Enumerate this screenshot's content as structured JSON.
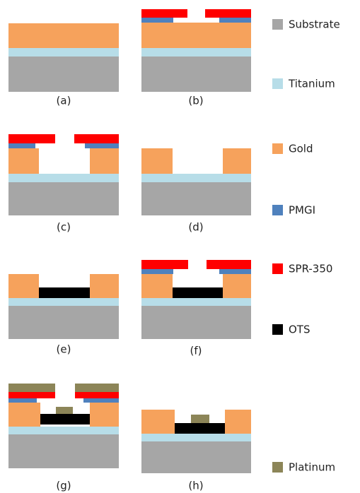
{
  "panels": [
    {
      "label": "(a)"
    },
    {
      "label": "(b)"
    },
    {
      "label": "(c)"
    },
    {
      "label": "(d)"
    },
    {
      "label": "(e)"
    },
    {
      "label": "(f)"
    },
    {
      "label": "(g)"
    },
    {
      "label": "(h)"
    }
  ],
  "legend": [
    {
      "label": "Substrate"
    },
    {
      "label": "Titanium"
    },
    {
      "label": "Gold"
    },
    {
      "label": "PMGI"
    },
    {
      "label": "SPR-350"
    },
    {
      "label": "OTS"
    },
    {
      "label": "Platinum"
    }
  ]
}
